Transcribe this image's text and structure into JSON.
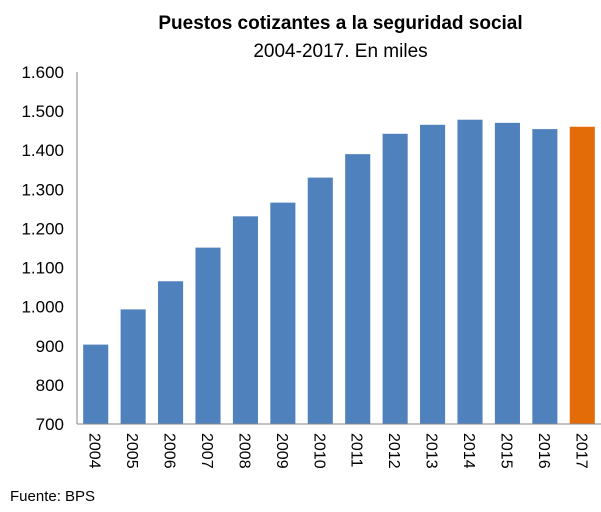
{
  "chart_data": {
    "type": "bar",
    "title": "Puestos cotizantes a la seguridad social",
    "subtitle": "2004-2017. En miles",
    "xlabel": "",
    "ylabel": "",
    "categories": [
      "2004",
      "2005",
      "2006",
      "2007",
      "2008",
      "2009",
      "2010",
      "2011",
      "2012",
      "2013",
      "2014",
      "2015",
      "2016",
      "2017"
    ],
    "values": [
      903,
      993,
      1065,
      1151,
      1231,
      1266,
      1330,
      1390,
      1442,
      1465,
      1478,
      1470,
      1454,
      1460
    ],
    "ylim": [
      700,
      1600
    ],
    "yticks": [
      700,
      800,
      900,
      1000,
      1100,
      1200,
      1300,
      1400,
      1500,
      1600
    ],
    "ytick_labels": [
      "700",
      "800",
      "900",
      "1.000",
      "1.100",
      "1.200",
      "1.300",
      "1.400",
      "1.500",
      "1.600"
    ],
    "grid": false,
    "legend": "none",
    "colors": {
      "bar": "#4f81bd",
      "highlight": "#e36c09",
      "axis": "#868686"
    },
    "highlight_index": 13
  },
  "source": "Fuente: BPS"
}
